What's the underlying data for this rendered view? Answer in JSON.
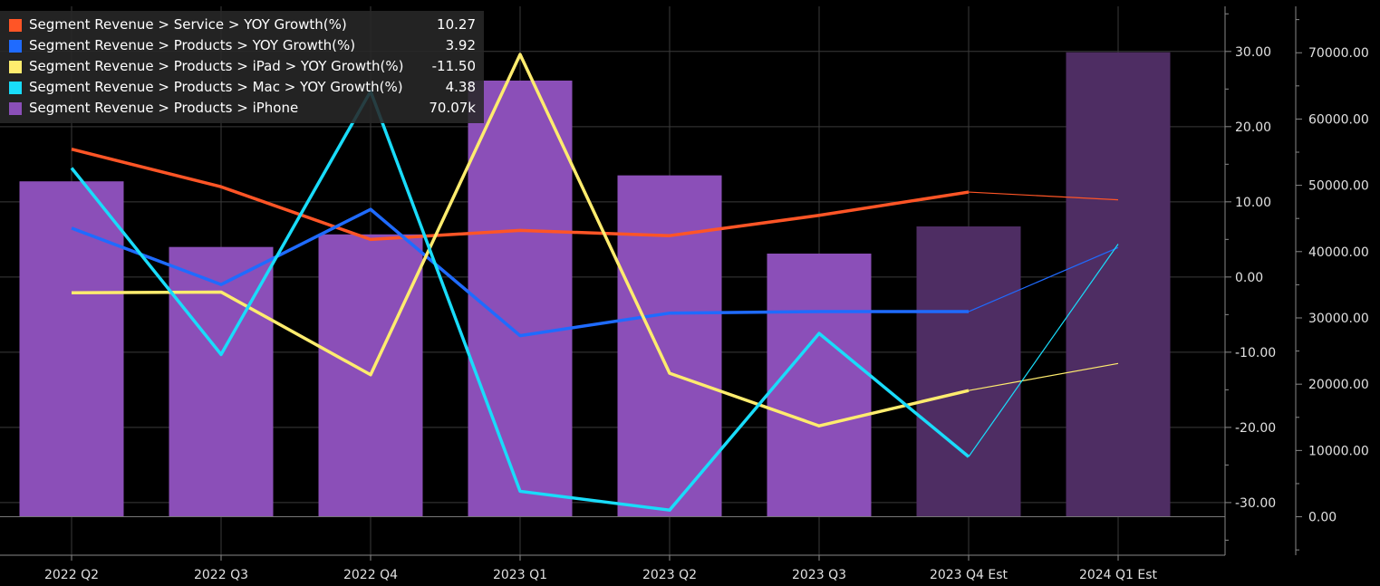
{
  "chart_data": {
    "type": "bar+line",
    "categories": [
      "2022 Q2",
      "2022 Q3",
      "2022 Q4",
      "2023 Q1",
      "2023 Q2",
      "2023 Q3",
      "2023 Q4 Est",
      "2024 Q1 Est"
    ],
    "estimate_from_index": 6,
    "bars": {
      "name": "Segment Revenue > Products > iPhone",
      "axis": "right2",
      "color": "#8b4fb8",
      "estimate_color": "#4e2d63",
      "values": [
        50600,
        40700,
        42600,
        65800,
        51500,
        39700,
        43800,
        70070
      ]
    },
    "series": [
      {
        "name": "Segment Revenue > Service > YOY Growth(%)",
        "color": "#ff5526",
        "values": [
          17.0,
          12.0,
          5.0,
          6.2,
          5.5,
          8.2,
          11.3,
          10.27
        ]
      },
      {
        "name": "Segment Revenue > Products > YOY Growth(%)",
        "color": "#1f6bff",
        "values": [
          6.5,
          -1.0,
          9.0,
          -7.8,
          -4.8,
          -4.6,
          -4.6,
          3.92
        ]
      },
      {
        "name": "Segment Revenue > Products > iPad > YOY Growth(%)",
        "color": "#ffec6e",
        "values": [
          -2.1,
          -2.0,
          -13.0,
          29.6,
          -12.8,
          -19.8,
          -15.1,
          -11.5
        ]
      },
      {
        "name": "Segment Revenue > Products > Mac > YOY Growth(%)",
        "color": "#19dcfa",
        "values": [
          14.5,
          -10.3,
          24.7,
          -28.5,
          -31.0,
          -7.5,
          -23.9,
          4.38
        ]
      }
    ],
    "legend": [
      {
        "label": "Segment Revenue > Service > YOY Growth(%)",
        "value": "10.27",
        "color": "#ff5526"
      },
      {
        "label": "Segment Revenue > Products > YOY Growth(%)",
        "value": "3.92",
        "color": "#1f6bff"
      },
      {
        "label": "Segment Revenue > Products > iPad > YOY Growth(%)",
        "value": "-11.50",
        "color": "#ffec6e"
      },
      {
        "label": "Segment Revenue > Products > Mac > YOY Growth(%)",
        "value": "4.38",
        "color": "#19dcfa"
      },
      {
        "label": "Segment Revenue > Products > iPhone",
        "value": "70.07k",
        "color": "#8b4fb8"
      }
    ],
    "right_axis_1": {
      "ticks": [
        30,
        20,
        10,
        0,
        -10,
        -20,
        -30
      ],
      "labels": [
        "30.00",
        "20.00",
        "10.00",
        "0.00",
        "-10.00",
        "-20.00",
        "-30.00"
      ],
      "ylim": [
        -37,
        36
      ]
    },
    "right_axis_2": {
      "ticks": [
        70000,
        60000,
        50000,
        40000,
        30000,
        20000,
        10000,
        0
      ],
      "labels": [
        "70000.00",
        "60000.00",
        "50000.00",
        "40000.00",
        "30000.00",
        "20000.00",
        "10000.00",
        "0.00"
      ],
      "ylim": [
        -5800,
        77000
      ]
    },
    "grid": true,
    "legend_position": "top-left"
  }
}
